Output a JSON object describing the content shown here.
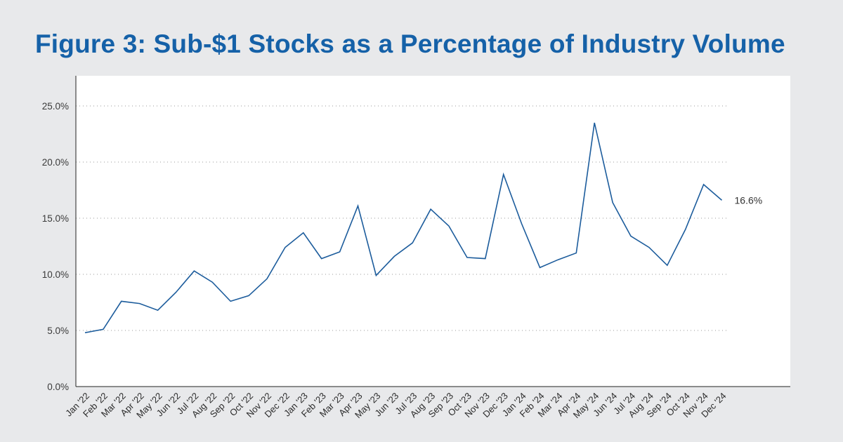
{
  "chart_data": {
    "type": "line",
    "title": "Figure 3: Sub-$1 Stocks as a Percentage of Industry Volume",
    "xlabel": "",
    "ylabel": "",
    "ylim": [
      0,
      27.5
    ],
    "yticks": [
      0,
      5,
      10,
      15,
      20,
      25
    ],
    "ytick_labels": [
      "0.0%",
      "5.0%",
      "10.0%",
      "15.0%",
      "20.0%",
      "25.0%"
    ],
    "grid": "horizontal-dotted",
    "categories": [
      "Jan '22",
      "Feb '22",
      "Mar '22",
      "Apr '22",
      "May '22",
      "Jun '22",
      "Jul '22",
      "Aug '22",
      "Sep '22",
      "Oct '22",
      "Nov '22",
      "Dec '22",
      "Jan '23",
      "Feb '23",
      "Mar '23",
      "Apr '23",
      "May '23",
      "Jun '23",
      "Jul '23",
      "Aug '23",
      "Sep '23",
      "Oct '23",
      "Nov '23",
      "Dec '23",
      "Jan '24",
      "Feb '24",
      "Mar '24",
      "Apr '24",
      "May '24",
      "Jun '24",
      "Jul '24",
      "Aug '24",
      "Sep '24",
      "Oct '24",
      "Nov '24",
      "Dec '24"
    ],
    "series": [
      {
        "name": "Sub-$1 Stocks % of Industry Volume",
        "color": "#1c5c9c",
        "values": [
          4.8,
          5.1,
          7.6,
          7.4,
          6.8,
          8.4,
          10.3,
          9.3,
          7.6,
          8.1,
          9.6,
          12.4,
          13.7,
          11.4,
          12.0,
          16.1,
          9.9,
          11.6,
          12.8,
          15.8,
          14.3,
          11.5,
          11.4,
          18.9,
          14.5,
          10.6,
          11.3,
          11.9,
          23.5,
          16.4,
          13.4,
          12.4,
          10.8,
          14.0,
          18.0,
          16.6
        ]
      }
    ],
    "annotations": [
      {
        "label": "16.6%",
        "category": "Dec '24",
        "value": 16.6
      }
    ]
  },
  "colors": {
    "background": "#e8e9eb",
    "plot_background": "#ffffff",
    "title": "#1561a8",
    "line": "#1c5c9c"
  }
}
